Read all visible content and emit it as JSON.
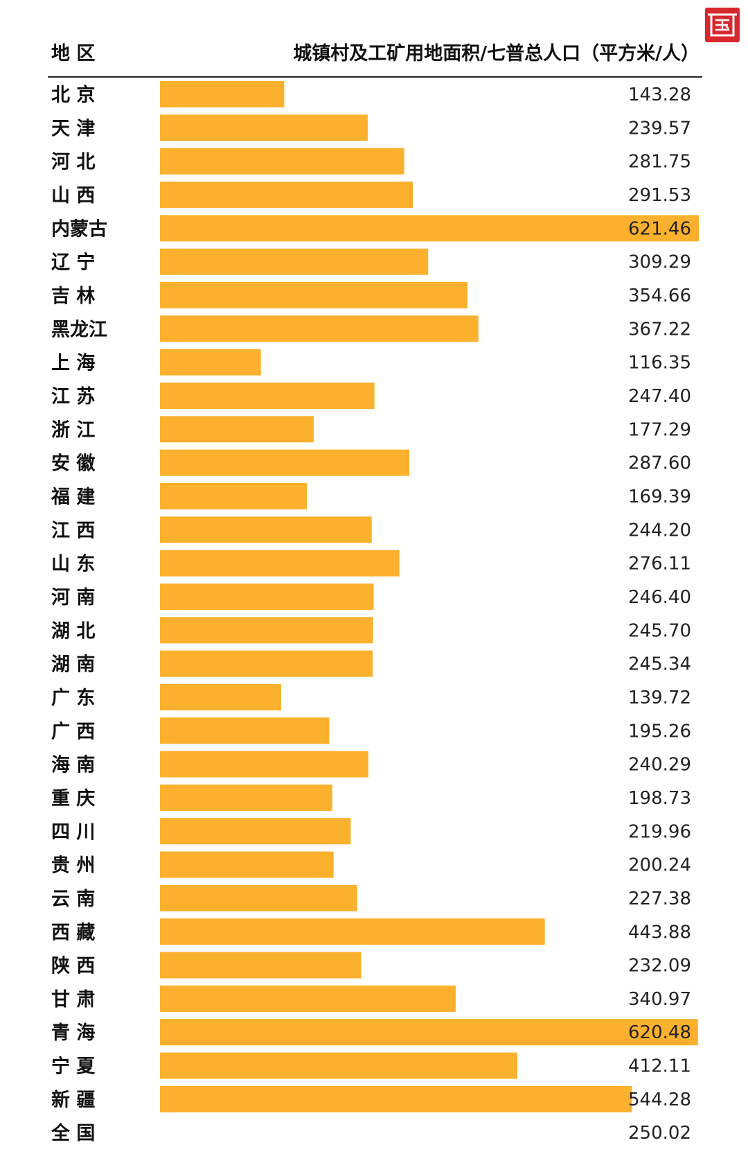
{
  "header": {
    "region_label": "地 区",
    "metric_label": "城镇村及工矿用地面积/七普总人口（平方米/人）"
  },
  "logo": {
    "icon": "guo-character-logo",
    "color": "#d7282f"
  },
  "colors": {
    "bar": "#fbb12d",
    "text": "#111111",
    "rule": "#222222"
  },
  "chart_data": {
    "type": "bar",
    "orientation": "horizontal",
    "title": "",
    "xlabel": "城镇村及工矿用地面积/七普总人口（平方米/人）",
    "ylabel": "地 区",
    "xlim": [
      0,
      621.46
    ],
    "grid": false,
    "categories": [
      "北 京",
      "天 津",
      "河 北",
      "山 西",
      "内蒙古",
      "辽 宁",
      "吉 林",
      "黑龙江",
      "上 海",
      "江 苏",
      "浙 江",
      "安 徽",
      "福 建",
      "江 西",
      "山 东",
      "河 南",
      "湖 北",
      "湖 南",
      "广 东",
      "广 西",
      "海 南",
      "重 庆",
      "四 川",
      "贵 州",
      "云 南",
      "西 藏",
      "陕 西",
      "甘 肃",
      "青 海",
      "宁 夏",
      "新 疆",
      "全 国"
    ],
    "values": [
      143.28,
      239.57,
      281.75,
      291.53,
      621.46,
      309.29,
      354.66,
      367.22,
      116.35,
      247.4,
      177.29,
      287.6,
      169.39,
      244.2,
      276.11,
      246.4,
      245.7,
      245.34,
      139.72,
      195.26,
      240.29,
      198.73,
      219.96,
      200.24,
      227.38,
      443.88,
      232.09,
      340.97,
      620.48,
      412.11,
      544.28,
      250.02
    ],
    "value_labels": [
      "143.28",
      "239.57",
      "281.75",
      "291.53",
      "621.46",
      "309.29",
      "354.66",
      "367.22",
      "116.35",
      "247.40",
      "177.29",
      "287.60",
      "169.39",
      "244.20",
      "276.11",
      "246.40",
      "245.70",
      "245.34",
      "139.72",
      "195.26",
      "240.29",
      "198.73",
      "219.96",
      "200.24",
      "227.38",
      "443.88",
      "232.09",
      "340.97",
      "620.48",
      "412.11",
      "544.28",
      "250.02"
    ],
    "no_bar_categories": [
      "全 国"
    ]
  }
}
